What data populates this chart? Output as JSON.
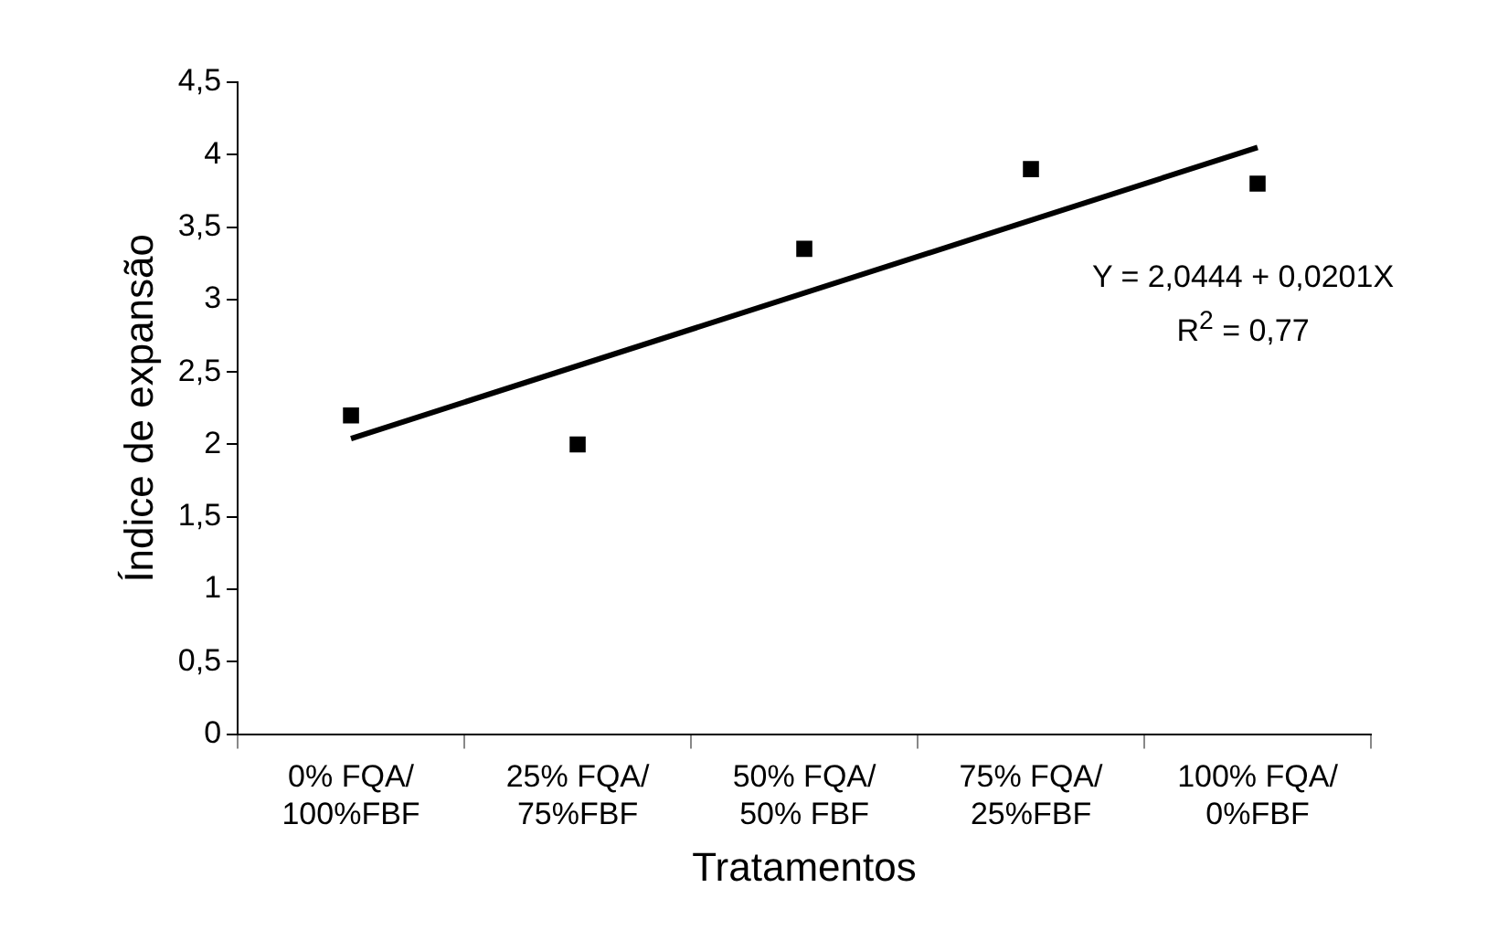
{
  "chart_data": {
    "type": "scatter",
    "xlabel": "Tratamentos",
    "ylabel": "Índice de expansão",
    "categories": [
      "0% FQA/\n100%FBF",
      "25% FQA/\n75%FBF",
      "50% FQA/\n50% FBF",
      "75% FQA/\n25%FBF",
      "100% FQA/\n0%FBF"
    ],
    "series": [
      {
        "type": "scatter",
        "color": "#000000",
        "values": [
          2.2,
          2.0,
          3.35,
          3.9,
          3.8
        ],
        "marker": "square"
      },
      {
        "type": "line",
        "color": "#000000",
        "x": [
          "0% FQA/\n100%FBF",
          "100% FQA/\n0%FBF"
        ],
        "values": [
          2.04,
          4.05
        ],
        "marker": "none",
        "line_style": "solid"
      }
    ],
    "ylim": [
      0,
      4.5
    ],
    "yticks": [
      {
        "value": 0,
        "label": "0"
      },
      {
        "value": 0.5,
        "label": "0,5"
      },
      {
        "value": 1,
        "label": "1"
      },
      {
        "value": 1.5,
        "label": "1,5"
      },
      {
        "value": 2,
        "label": "2"
      },
      {
        "value": 2.5,
        "label": "2,5"
      },
      {
        "value": 3,
        "label": "3"
      },
      {
        "value": 3.5,
        "label": "3,5"
      },
      {
        "value": 4,
        "label": "4"
      },
      {
        "value": 4.5,
        "label": "4,5"
      }
    ],
    "grid": false,
    "legend": false,
    "annotations": [
      "Y = 2,0444 + 0,0201X",
      "R$^{2}$ = 0,77"
    ]
  }
}
